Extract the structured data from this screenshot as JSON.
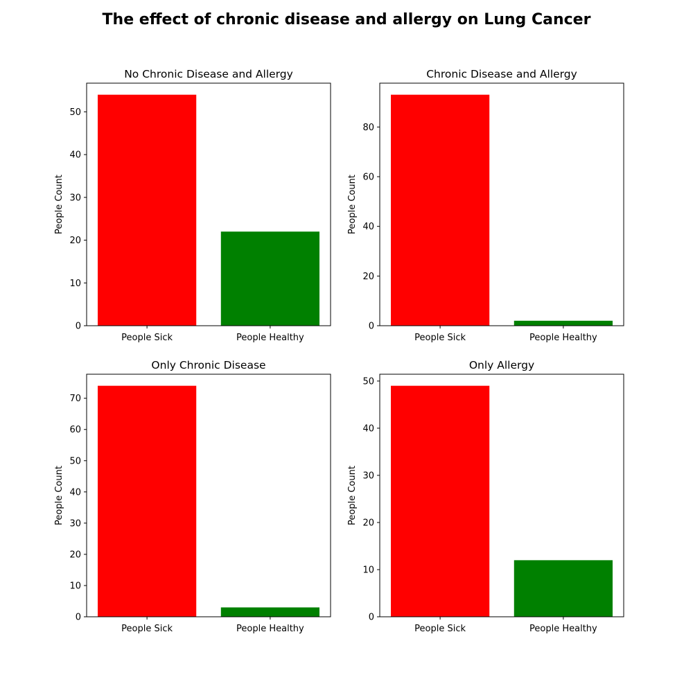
{
  "title": "The effect of chronic disease and allergy on Lung Cancer",
  "colors": {
    "sick": "#ff0000",
    "healthy": "#008000"
  },
  "chart_data": [
    {
      "type": "bar",
      "title": "No Chronic Disease and Allergy",
      "categories": [
        "People Sick",
        "People Healthy"
      ],
      "values": [
        54,
        22
      ],
      "xlabel": "",
      "ylabel": "People Count",
      "ylim": [
        0,
        56.7
      ],
      "yticks": [
        0,
        10,
        20,
        30,
        40,
        50
      ]
    },
    {
      "type": "bar",
      "title": "Chronic Disease and Allergy",
      "categories": [
        "People Sick",
        "People Healthy"
      ],
      "values": [
        93,
        2
      ],
      "xlabel": "",
      "ylabel": "People Count",
      "ylim": [
        0,
        97.65
      ],
      "yticks": [
        0,
        20,
        40,
        60,
        80
      ]
    },
    {
      "type": "bar",
      "title": "Only Chronic Disease",
      "categories": [
        "People Sick",
        "People Healthy"
      ],
      "values": [
        74,
        3
      ],
      "xlabel": "",
      "ylabel": "People Count",
      "ylim": [
        0,
        77.7
      ],
      "yticks": [
        0,
        10,
        20,
        30,
        40,
        50,
        60,
        70
      ]
    },
    {
      "type": "bar",
      "title": "Only Allergy",
      "categories": [
        "People Sick",
        "People Healthy"
      ],
      "values": [
        49,
        12
      ],
      "xlabel": "",
      "ylabel": "People Count",
      "ylim": [
        0,
        51.45
      ],
      "yticks": [
        0,
        10,
        20,
        30,
        40,
        50
      ]
    }
  ]
}
